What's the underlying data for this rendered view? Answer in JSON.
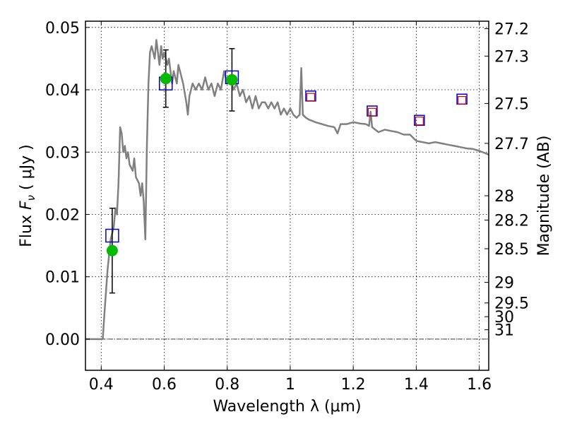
{
  "chart_data": {
    "type": "line",
    "xlabel": "Wavelength  λ (μm)",
    "ylabel": "Flux  F_ν  ( μJy )",
    "ylabel_parts": {
      "prefix": "Flux  ",
      "symbol": "F",
      "subscript": "ν",
      "suffix": "  ( μJy )"
    },
    "right_ylabel": "Magnitude (AB)",
    "xlim": [
      0.35,
      1.63
    ],
    "ylim": [
      -0.005,
      0.051
    ],
    "x_ticks": [
      0.4,
      0.6,
      0.8,
      1.0,
      1.2,
      1.4,
      1.6
    ],
    "x_tick_labels": [
      "0.4",
      "0.6",
      "0.8",
      "1",
      "1.2",
      "1.4",
      "1.6"
    ],
    "y_ticks": [
      0.0,
      0.01,
      0.02,
      0.03,
      0.04,
      0.05
    ],
    "y_tick_labels": [
      "0.00",
      "0.01",
      "0.02",
      "0.03",
      "0.04",
      "0.05"
    ],
    "right_ticks": [
      {
        "label": "27.2",
        "flux": 0.0498
      },
      {
        "label": "27.3",
        "flux": 0.0454
      },
      {
        "label": "27.5",
        "flux": 0.0378
      },
      {
        "label": "27.7",
        "flux": 0.0314
      },
      {
        "label": "28",
        "flux": 0.023
      },
      {
        "label": "28.2",
        "flux": 0.0191
      },
      {
        "label": "28.5",
        "flux": 0.0145
      },
      {
        "label": "29",
        "flux": 0.0091
      },
      {
        "label": "29.5",
        "flux": 0.0058
      },
      {
        "label": "30",
        "flux": 0.0036
      },
      {
        "label": "31",
        "flux": 0.0015
      }
    ],
    "grid": true,
    "colors": {
      "spectrum": "#808080",
      "observed": "#00bb00",
      "model_box": "#0000cc",
      "inner_box": "#dd0000",
      "errorbar": "#000000",
      "zero_line": "#000000"
    },
    "series": [
      {
        "kind": "model-spectrum",
        "points": [
          [
            0.35,
            0.0
          ],
          [
            0.4,
            0.0
          ],
          [
            0.405,
            0.0
          ],
          [
            0.41,
            0.004
          ],
          [
            0.42,
            0.011
          ],
          [
            0.43,
            0.016
          ],
          [
            0.44,
            0.018
          ],
          [
            0.445,
            0.021
          ],
          [
            0.45,
            0.02
          ],
          [
            0.455,
            0.025
          ],
          [
            0.46,
            0.034
          ],
          [
            0.465,
            0.033
          ],
          [
            0.47,
            0.03
          ],
          [
            0.475,
            0.031
          ],
          [
            0.48,
            0.029
          ],
          [
            0.485,
            0.03
          ],
          [
            0.49,
            0.028
          ],
          [
            0.5,
            0.027
          ],
          [
            0.505,
            0.029
          ],
          [
            0.51,
            0.026
          ],
          [
            0.52,
            0.025
          ],
          [
            0.525,
            0.023
          ],
          [
            0.53,
            0.025
          ],
          [
            0.535,
            0.022
          ],
          [
            0.54,
            0.016
          ],
          [
            0.545,
            0.031
          ],
          [
            0.55,
            0.041
          ],
          [
            0.555,
            0.046
          ],
          [
            0.56,
            0.047
          ],
          [
            0.565,
            0.046
          ],
          [
            0.57,
            0.045
          ],
          [
            0.575,
            0.048
          ],
          [
            0.58,
            0.046
          ],
          [
            0.585,
            0.044
          ],
          [
            0.59,
            0.047
          ],
          [
            0.595,
            0.045
          ],
          [
            0.6,
            0.046
          ],
          [
            0.61,
            0.044
          ],
          [
            0.615,
            0.045
          ],
          [
            0.62,
            0.043
          ],
          [
            0.625,
            0.041
          ],
          [
            0.63,
            0.043
          ],
          [
            0.64,
            0.041
          ],
          [
            0.645,
            0.044
          ],
          [
            0.65,
            0.043
          ],
          [
            0.66,
            0.041
          ],
          [
            0.67,
            0.038
          ],
          [
            0.675,
            0.036
          ],
          [
            0.68,
            0.039
          ],
          [
            0.69,
            0.041
          ],
          [
            0.7,
            0.04
          ],
          [
            0.71,
            0.041
          ],
          [
            0.72,
            0.04
          ],
          [
            0.73,
            0.042
          ],
          [
            0.74,
            0.04
          ],
          [
            0.75,
            0.041
          ],
          [
            0.76,
            0.039
          ],
          [
            0.77,
            0.041
          ],
          [
            0.78,
            0.04
          ],
          [
            0.79,
            0.043
          ],
          [
            0.8,
            0.041
          ],
          [
            0.81,
            0.042
          ],
          [
            0.82,
            0.04
          ],
          [
            0.83,
            0.041
          ],
          [
            0.84,
            0.039
          ],
          [
            0.85,
            0.04
          ],
          [
            0.86,
            0.038
          ],
          [
            0.87,
            0.039
          ],
          [
            0.88,
            0.037
          ],
          [
            0.89,
            0.039
          ],
          [
            0.9,
            0.037
          ],
          [
            0.91,
            0.038
          ],
          [
            0.92,
            0.038
          ],
          [
            0.93,
            0.037
          ],
          [
            0.94,
            0.038
          ],
          [
            0.95,
            0.037
          ],
          [
            0.96,
            0.038
          ],
          [
            0.97,
            0.036
          ],
          [
            0.98,
            0.037
          ],
          [
            0.99,
            0.036
          ],
          [
            1.0,
            0.037
          ],
          [
            1.01,
            0.036
          ],
          [
            1.02,
            0.0355
          ],
          [
            1.03,
            0.036
          ],
          [
            1.035,
            0.0435
          ],
          [
            1.04,
            0.036
          ],
          [
            1.05,
            0.0355
          ],
          [
            1.06,
            0.0352
          ],
          [
            1.07,
            0.035
          ],
          [
            1.08,
            0.0348
          ],
          [
            1.1,
            0.0345
          ],
          [
            1.12,
            0.0342
          ],
          [
            1.14,
            0.034
          ],
          [
            1.15,
            0.033
          ],
          [
            1.16,
            0.0345
          ],
          [
            1.18,
            0.0345
          ],
          [
            1.2,
            0.0348
          ],
          [
            1.22,
            0.0346
          ],
          [
            1.24,
            0.0345
          ],
          [
            1.25,
            0.0342
          ],
          [
            1.255,
            0.0365
          ],
          [
            1.26,
            0.034
          ],
          [
            1.28,
            0.0332
          ],
          [
            1.3,
            0.0336
          ],
          [
            1.32,
            0.0334
          ],
          [
            1.34,
            0.0332
          ],
          [
            1.36,
            0.0328
          ],
          [
            1.38,
            0.0328
          ],
          [
            1.4,
            0.0318
          ],
          [
            1.42,
            0.0316
          ],
          [
            1.44,
            0.0314
          ],
          [
            1.46,
            0.0316
          ],
          [
            1.48,
            0.0314
          ],
          [
            1.5,
            0.0312
          ],
          [
            1.52,
            0.031
          ],
          [
            1.54,
            0.0308
          ],
          [
            1.56,
            0.0306
          ],
          [
            1.58,
            0.0305
          ],
          [
            1.6,
            0.0302
          ],
          [
            1.62,
            0.0298
          ],
          [
            1.63,
            0.0296
          ]
        ]
      },
      {
        "kind": "model-photometry",
        "x": [
          0.435,
          0.605,
          0.815,
          1.065,
          1.26,
          1.41,
          1.545
        ],
        "y": [
          0.0166,
          0.041,
          0.042,
          0.039,
          0.0366,
          0.0351,
          0.0385
        ]
      },
      {
        "kind": "red-inner-boxes",
        "x": [
          1.065,
          1.26,
          1.41,
          1.545
        ],
        "y": [
          0.0388,
          0.0364,
          0.035,
          0.0383
        ]
      },
      {
        "kind": "observed",
        "x": [
          0.435,
          0.605,
          0.815
        ],
        "y": [
          0.0142,
          0.0418,
          0.0416
        ],
        "yerr": [
          0.0068,
          0.0046,
          0.005
        ]
      }
    ]
  }
}
